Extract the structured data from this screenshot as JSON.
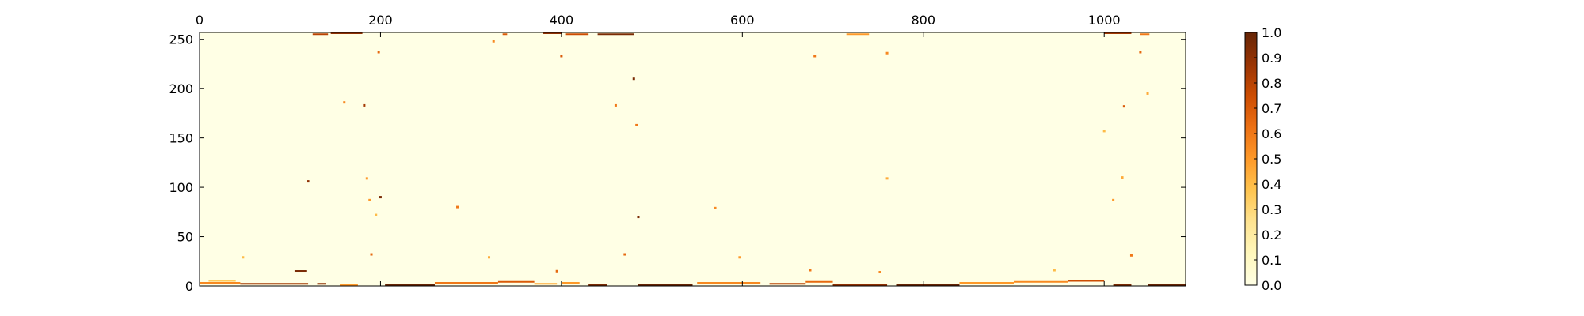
{
  "chart_data": {
    "type": "heatmap",
    "title": "",
    "xlabel": "",
    "ylabel": "",
    "colormap": "YlOrBr",
    "xlim": [
      0,
      1090
    ],
    "ylim": [
      0,
      257
    ],
    "x_ticks": [
      0,
      200,
      400,
      600,
      800,
      1000
    ],
    "x_tick_labels": [
      "0",
      "200",
      "400",
      "600",
      "800",
      "1000"
    ],
    "x_tick_position": "top",
    "y_ticks": [
      0,
      50,
      100,
      150,
      200,
      250
    ],
    "y_tick_labels": [
      "0",
      "50",
      "100",
      "150",
      "200",
      "250"
    ],
    "colorbar": {
      "min": 0.0,
      "max": 1.0,
      "ticks": [
        0.0,
        0.1,
        0.2,
        0.3,
        0.4,
        0.5,
        0.6,
        0.7,
        0.8,
        0.9,
        1.0
      ],
      "tick_labels": [
        "0.0",
        "0.1",
        "0.2",
        "0.3",
        "0.4",
        "0.5",
        "0.6",
        "0.7",
        "0.8",
        "0.9",
        "1.0"
      ],
      "location": "right"
    },
    "background_value": 0.0,
    "segments": [
      {
        "x0": 0,
        "x1": 45,
        "y": 3,
        "v": 0.55
      },
      {
        "x0": 10,
        "x1": 40,
        "y": 5,
        "v": 0.35
      },
      {
        "x0": 45,
        "x1": 120,
        "y": 2,
        "v": 0.85
      },
      {
        "x0": 105,
        "x1": 118,
        "y": 15,
        "v": 0.95
      },
      {
        "x0": 130,
        "x1": 140,
        "y": 2,
        "v": 0.9
      },
      {
        "x0": 155,
        "x1": 175,
        "y": 1,
        "v": 0.5
      },
      {
        "x0": 205,
        "x1": 260,
        "y": 1,
        "v": 1.0
      },
      {
        "x0": 260,
        "x1": 330,
        "y": 3,
        "v": 0.6
      },
      {
        "x0": 330,
        "x1": 370,
        "y": 4,
        "v": 0.7
      },
      {
        "x0": 370,
        "x1": 395,
        "y": 2,
        "v": 0.45
      },
      {
        "x0": 400,
        "x1": 420,
        "y": 3,
        "v": 0.5
      },
      {
        "x0": 430,
        "x1": 450,
        "y": 1,
        "v": 0.95
      },
      {
        "x0": 485,
        "x1": 545,
        "y": 1,
        "v": 1.0
      },
      {
        "x0": 550,
        "x1": 620,
        "y": 3,
        "v": 0.55
      },
      {
        "x0": 630,
        "x1": 670,
        "y": 2,
        "v": 0.8
      },
      {
        "x0": 670,
        "x1": 700,
        "y": 4,
        "v": 0.65
      },
      {
        "x0": 700,
        "x1": 760,
        "y": 1,
        "v": 0.9
      },
      {
        "x0": 770,
        "x1": 840,
        "y": 1,
        "v": 1.0
      },
      {
        "x0": 840,
        "x1": 900,
        "y": 3,
        "v": 0.5
      },
      {
        "x0": 900,
        "x1": 960,
        "y": 4,
        "v": 0.55
      },
      {
        "x0": 960,
        "x1": 1000,
        "y": 5,
        "v": 0.75
      },
      {
        "x0": 1010,
        "x1": 1030,
        "y": 1,
        "v": 0.95
      },
      {
        "x0": 1048,
        "x1": 1090,
        "y": 1,
        "v": 1.0
      },
      {
        "x0": 125,
        "x1": 142,
        "y": 255,
        "v": 0.8
      },
      {
        "x0": 145,
        "x1": 180,
        "y": 256,
        "v": 0.9
      },
      {
        "x0": 335,
        "x1": 340,
        "y": 255,
        "v": 0.7
      },
      {
        "x0": 380,
        "x1": 400,
        "y": 256,
        "v": 0.9
      },
      {
        "x0": 405,
        "x1": 430,
        "y": 255,
        "v": 0.75
      },
      {
        "x0": 440,
        "x1": 480,
        "y": 255,
        "v": 0.95
      },
      {
        "x0": 1000,
        "x1": 1030,
        "y": 256,
        "v": 0.85
      },
      {
        "x0": 1040,
        "x1": 1050,
        "y": 255,
        "v": 0.6
      },
      {
        "x0": 715,
        "x1": 740,
        "y": 255,
        "v": 0.5
      }
    ],
    "points": [
      {
        "x": 198,
        "y": 237,
        "v": 0.65
      },
      {
        "x": 400,
        "y": 233,
        "v": 0.7
      },
      {
        "x": 325,
        "y": 248,
        "v": 0.55
      },
      {
        "x": 680,
        "y": 233,
        "v": 0.6
      },
      {
        "x": 760,
        "y": 236,
        "v": 0.55
      },
      {
        "x": 1040,
        "y": 237,
        "v": 0.65
      },
      {
        "x": 480,
        "y": 210,
        "v": 0.95
      },
      {
        "x": 160,
        "y": 186,
        "v": 0.55
      },
      {
        "x": 182,
        "y": 183,
        "v": 0.85
      },
      {
        "x": 460,
        "y": 183,
        "v": 0.6
      },
      {
        "x": 1022,
        "y": 182,
        "v": 0.7
      },
      {
        "x": 1048,
        "y": 195,
        "v": 0.45
      },
      {
        "x": 483,
        "y": 163,
        "v": 0.6
      },
      {
        "x": 1000,
        "y": 157,
        "v": 0.4
      },
      {
        "x": 120,
        "y": 106,
        "v": 0.9
      },
      {
        "x": 185,
        "y": 109,
        "v": 0.5
      },
      {
        "x": 760,
        "y": 109,
        "v": 0.45
      },
      {
        "x": 1020,
        "y": 110,
        "v": 0.45
      },
      {
        "x": 200,
        "y": 90,
        "v": 0.95
      },
      {
        "x": 188,
        "y": 87,
        "v": 0.5
      },
      {
        "x": 285,
        "y": 80,
        "v": 0.6
      },
      {
        "x": 570,
        "y": 79,
        "v": 0.55
      },
      {
        "x": 1010,
        "y": 87,
        "v": 0.5
      },
      {
        "x": 485,
        "y": 70,
        "v": 0.95
      },
      {
        "x": 195,
        "y": 72,
        "v": 0.4
      },
      {
        "x": 190,
        "y": 32,
        "v": 0.65
      },
      {
        "x": 470,
        "y": 32,
        "v": 0.65
      },
      {
        "x": 1030,
        "y": 31,
        "v": 0.6
      },
      {
        "x": 597,
        "y": 29,
        "v": 0.5
      },
      {
        "x": 320,
        "y": 29,
        "v": 0.45
      },
      {
        "x": 48,
        "y": 29,
        "v": 0.4
      },
      {
        "x": 675,
        "y": 16,
        "v": 0.6
      },
      {
        "x": 752,
        "y": 14,
        "v": 0.55
      },
      {
        "x": 395,
        "y": 15,
        "v": 0.65
      },
      {
        "x": 945,
        "y": 16,
        "v": 0.4
      }
    ]
  }
}
